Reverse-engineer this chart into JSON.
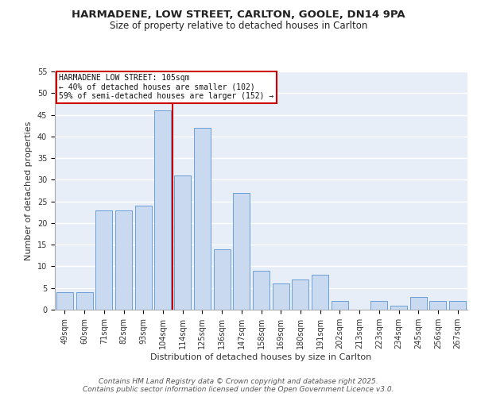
{
  "title1": "HARMADENE, LOW STREET, CARLTON, GOOLE, DN14 9PA",
  "title2": "Size of property relative to detached houses in Carlton",
  "xlabel": "Distribution of detached houses by size in Carlton",
  "ylabel": "Number of detached properties",
  "categories": [
    "49sqm",
    "60sqm",
    "71sqm",
    "82sqm",
    "93sqm",
    "104sqm",
    "114sqm",
    "125sqm",
    "136sqm",
    "147sqm",
    "158sqm",
    "169sqm",
    "180sqm",
    "191sqm",
    "202sqm",
    "213sqm",
    "223sqm",
    "234sqm",
    "245sqm",
    "256sqm",
    "267sqm"
  ],
  "values": [
    4,
    4,
    23,
    23,
    24,
    46,
    31,
    42,
    14,
    27,
    9,
    6,
    7,
    8,
    2,
    0,
    2,
    1,
    3,
    2,
    2
  ],
  "bar_color": "#c9d9f0",
  "bar_edge_color": "#6a9fd8",
  "vline_x": 5.5,
  "vline_color": "#cc0000",
  "annotation_title": "HARMADENE LOW STREET: 105sqm",
  "annotation_line1": "← 40% of detached houses are smaller (102)",
  "annotation_line2": "59% of semi-detached houses are larger (152) →",
  "annotation_box_edge_color": "#cc0000",
  "ylim": [
    0,
    55
  ],
  "yticks": [
    0,
    5,
    10,
    15,
    20,
    25,
    30,
    35,
    40,
    45,
    50,
    55
  ],
  "footer_line1": "Contains HM Land Registry data © Crown copyright and database right 2025.",
  "footer_line2": "Contains public sector information licensed under the Open Government Licence v3.0.",
  "background_color": "#e8eef8",
  "grid_color": "#ffffff",
  "title_fontsize": 9.5,
  "subtitle_fontsize": 8.5,
  "tick_fontsize": 7,
  "footer_fontsize": 6.5,
  "ylabel_fontsize": 8,
  "xlabel_fontsize": 8
}
